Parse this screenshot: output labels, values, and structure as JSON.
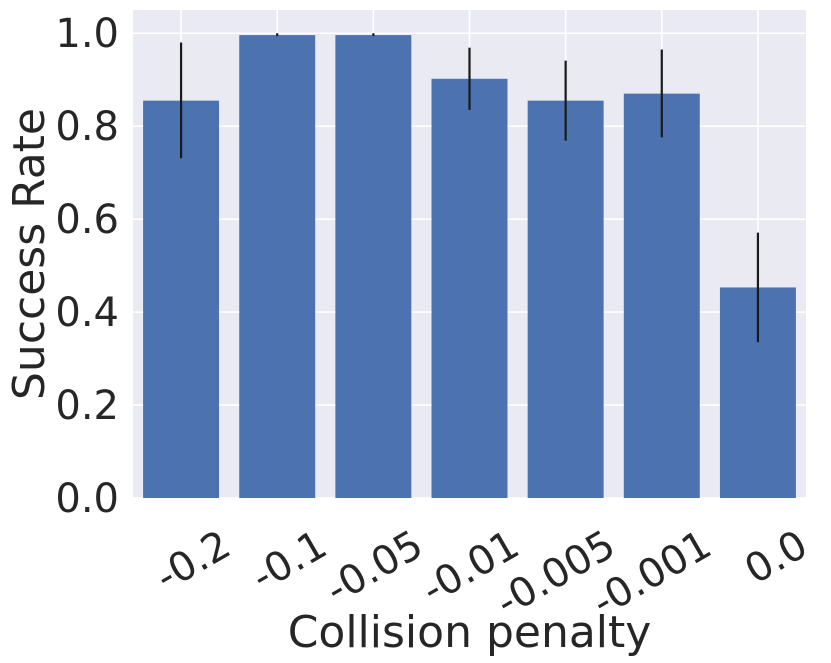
{
  "chart_data": {
    "type": "bar",
    "title": "",
    "xlabel": "Collision penalty",
    "ylabel": "Success Rate",
    "categories": [
      "-0.2",
      "-0.1",
      "-0.05",
      "-0.01",
      "-0.005",
      "-0.001",
      "0.0"
    ],
    "values": [
      0.855,
      0.996,
      0.996,
      0.902,
      0.855,
      0.87,
      0.453
    ],
    "error_low": [
      0.731,
      0.994,
      0.994,
      0.835,
      0.769,
      0.776,
      0.335
    ],
    "error_high": [
      0.98,
      1.0,
      1.0,
      0.969,
      0.941,
      0.965,
      0.571
    ],
    "ylim": [
      0.0,
      1.05
    ],
    "yticks": [
      "0.0",
      "0.2",
      "0.4",
      "0.6",
      "0.8",
      "1.0"
    ],
    "grid": true,
    "colors": {
      "bar": "#4c72b0",
      "error_bar": "#1a1a1a",
      "plot_background": "#eaeaf2",
      "grid": "#ffffff",
      "text": "#262626"
    }
  }
}
